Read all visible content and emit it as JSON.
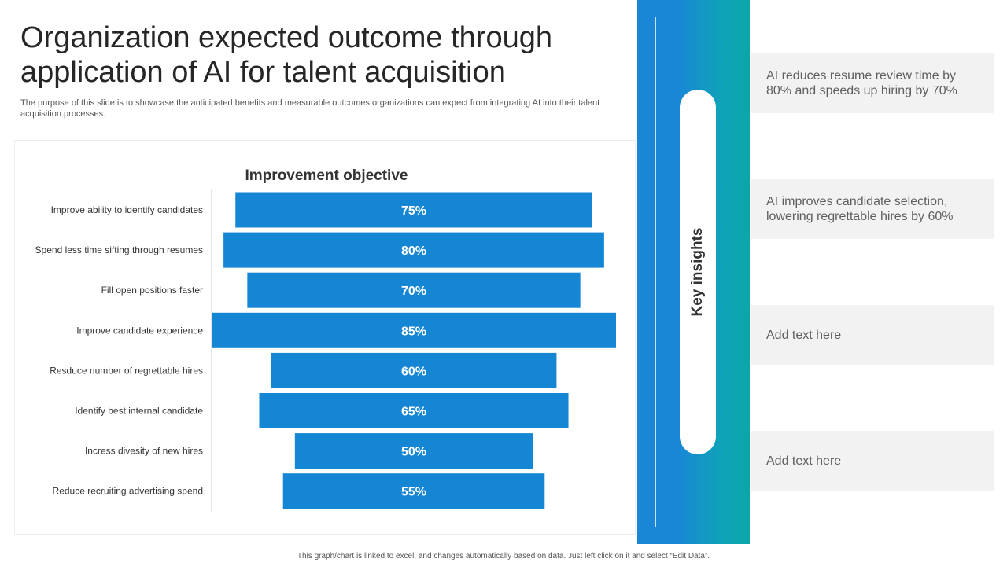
{
  "header": {
    "title": "Organization expected outcome through application of AI for talent acquisition",
    "subtitle": "The purpose of this slide is to showcase the anticipated benefits and measurable outcomes organizations can expect from integrating AI into their talent acquisition processes."
  },
  "chart_data": {
    "type": "bar",
    "orientation": "horizontal-centered",
    "title": "Improvement objective",
    "categories": [
      "Improve ability to identify candidates",
      "Spend less time sifting through resumes",
      "Fill open positions faster",
      "Improve candidate experience",
      "Resduce number of regrettable hires",
      "Identify best internal candidate",
      "Incress divesity of new hires",
      "Reduce recruiting advertising spend"
    ],
    "values": [
      75,
      80,
      70,
      85,
      60,
      65,
      50,
      55
    ],
    "value_labels": [
      "75%",
      "80%",
      "70%",
      "85%",
      "60%",
      "65%",
      "50%",
      "55%"
    ],
    "unit": "%",
    "bar_color": "#1586d4",
    "label_color": "#ffffff",
    "grid": false
  },
  "sidebar": {
    "label": "Key insights",
    "colors": {
      "start": "#1a86d6",
      "end": "#0ca6a8"
    }
  },
  "insights": [
    {
      "text": "AI reduces resume review time by 80% and speeds up hiring by 70%"
    },
    {
      "text": "AI improves candidate selection, lowering regrettable hires by 60%"
    },
    {
      "text": "Add text here"
    },
    {
      "text": "Add text here"
    }
  ],
  "footer": {
    "note": "This graph/chart is linked to excel, and changes automatically based on data. Just left click on it and select “Edit Data”."
  }
}
